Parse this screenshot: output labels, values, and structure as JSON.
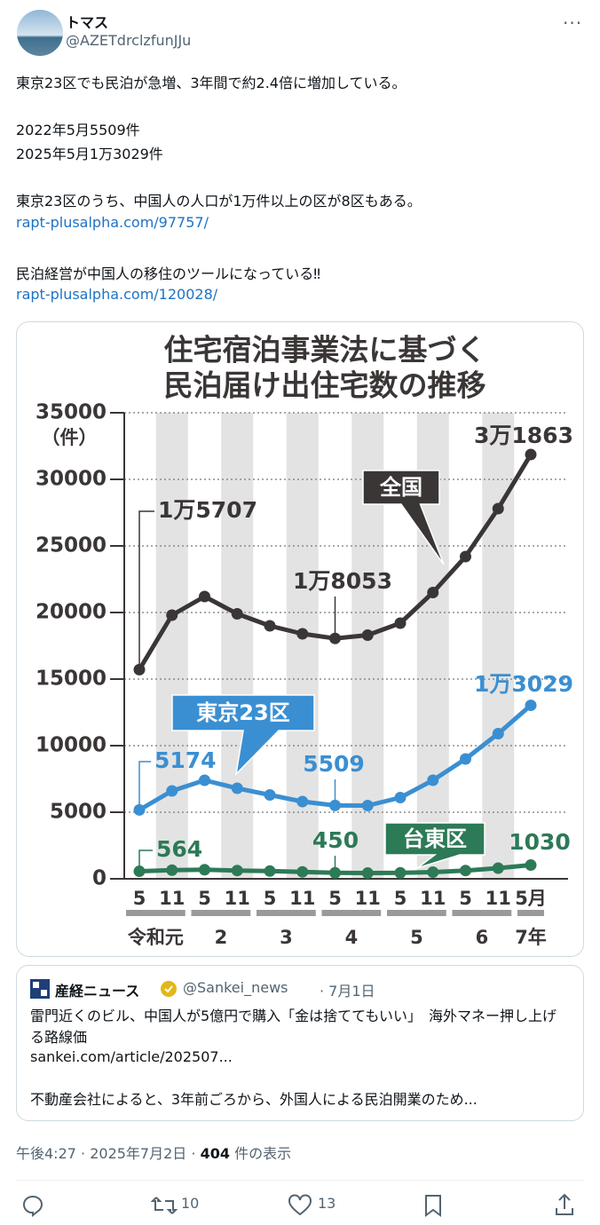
{
  "user": {
    "name": "トマス",
    "handle": "@AZETdrclzfunJJu"
  },
  "body": [
    "東京23区でも民泊が急増、3年間で約2.4倍に増加している。",
    "2022年5月5509件",
    "2025年5月1万3029件",
    "東京23区のうち、中国人の人口が1万件以上の区が8区もある。",
    "rapt-plusalpha.com/97757/",
    "民泊経営が中国人の移住のツールになっている‼",
    "rapt-plusalpha.com/120028/"
  ],
  "chart_data": {
    "type": "line",
    "title": [
      "住宅宿泊事業法に基づく",
      "民泊届け出住宅数の推移"
    ],
    "y_unit": "（件）",
    "categories": [
      "5",
      "11",
      "5",
      "11",
      "5",
      "11",
      "5",
      "11",
      "5",
      "11",
      "5",
      "11",
      "5月"
    ],
    "year_labels": [
      "令和元",
      "2",
      "3",
      "4",
      "5",
      "6",
      "7年"
    ],
    "ylim": [
      0,
      35000
    ],
    "yticks": [
      0,
      5000,
      10000,
      15000,
      20000,
      25000,
      30000,
      35000
    ],
    "grid": true,
    "series": [
      {
        "name": "全国",
        "color": "#3b3636",
        "values": [
          15707,
          19800,
          21200,
          19900,
          19000,
          18400,
          18053,
          18300,
          19200,
          21500,
          24200,
          27800,
          31863
        ],
        "value_labels": [
          "1万5707",
          null,
          null,
          null,
          null,
          null,
          "1万8053",
          null,
          null,
          null,
          null,
          null,
          "3万1863"
        ]
      },
      {
        "name": "東京23区",
        "color": "#3a8fd2",
        "values": [
          5174,
          6600,
          7400,
          6800,
          6300,
          5800,
          5509,
          5500,
          6100,
          7400,
          9000,
          10900,
          13029
        ],
        "value_labels": [
          "5174",
          null,
          null,
          null,
          null,
          null,
          "5509",
          null,
          null,
          null,
          null,
          null,
          "1万3029"
        ]
      },
      {
        "name": "台東区",
        "color": "#2d7a57",
        "values": [
          564,
          650,
          680,
          620,
          580,
          520,
          450,
          430,
          450,
          500,
          620,
          800,
          1030
        ],
        "value_labels": [
          "564",
          null,
          null,
          null,
          null,
          null,
          "450",
          null,
          null,
          null,
          null,
          null,
          "1030"
        ]
      }
    ]
  },
  "quote": {
    "name": "産経ニュース",
    "handle": "@Sankei_news",
    "date": "· 7月1日",
    "headline": "雷門近くのビル、中国人が5億円で購入「金は捨ててもいい」　海外マネー押し上げる路線価",
    "link": "sankei.com/article/202507...",
    "excerpt": "不動産会社によると、3年前ごろから、外国人による民泊開業のため..."
  },
  "meta": {
    "time": "午後4:27",
    "date": "2025年7月2日",
    "views": "404",
    "views_label": "件の表示"
  },
  "actions": {
    "retweets": 10,
    "likes": 13
  }
}
